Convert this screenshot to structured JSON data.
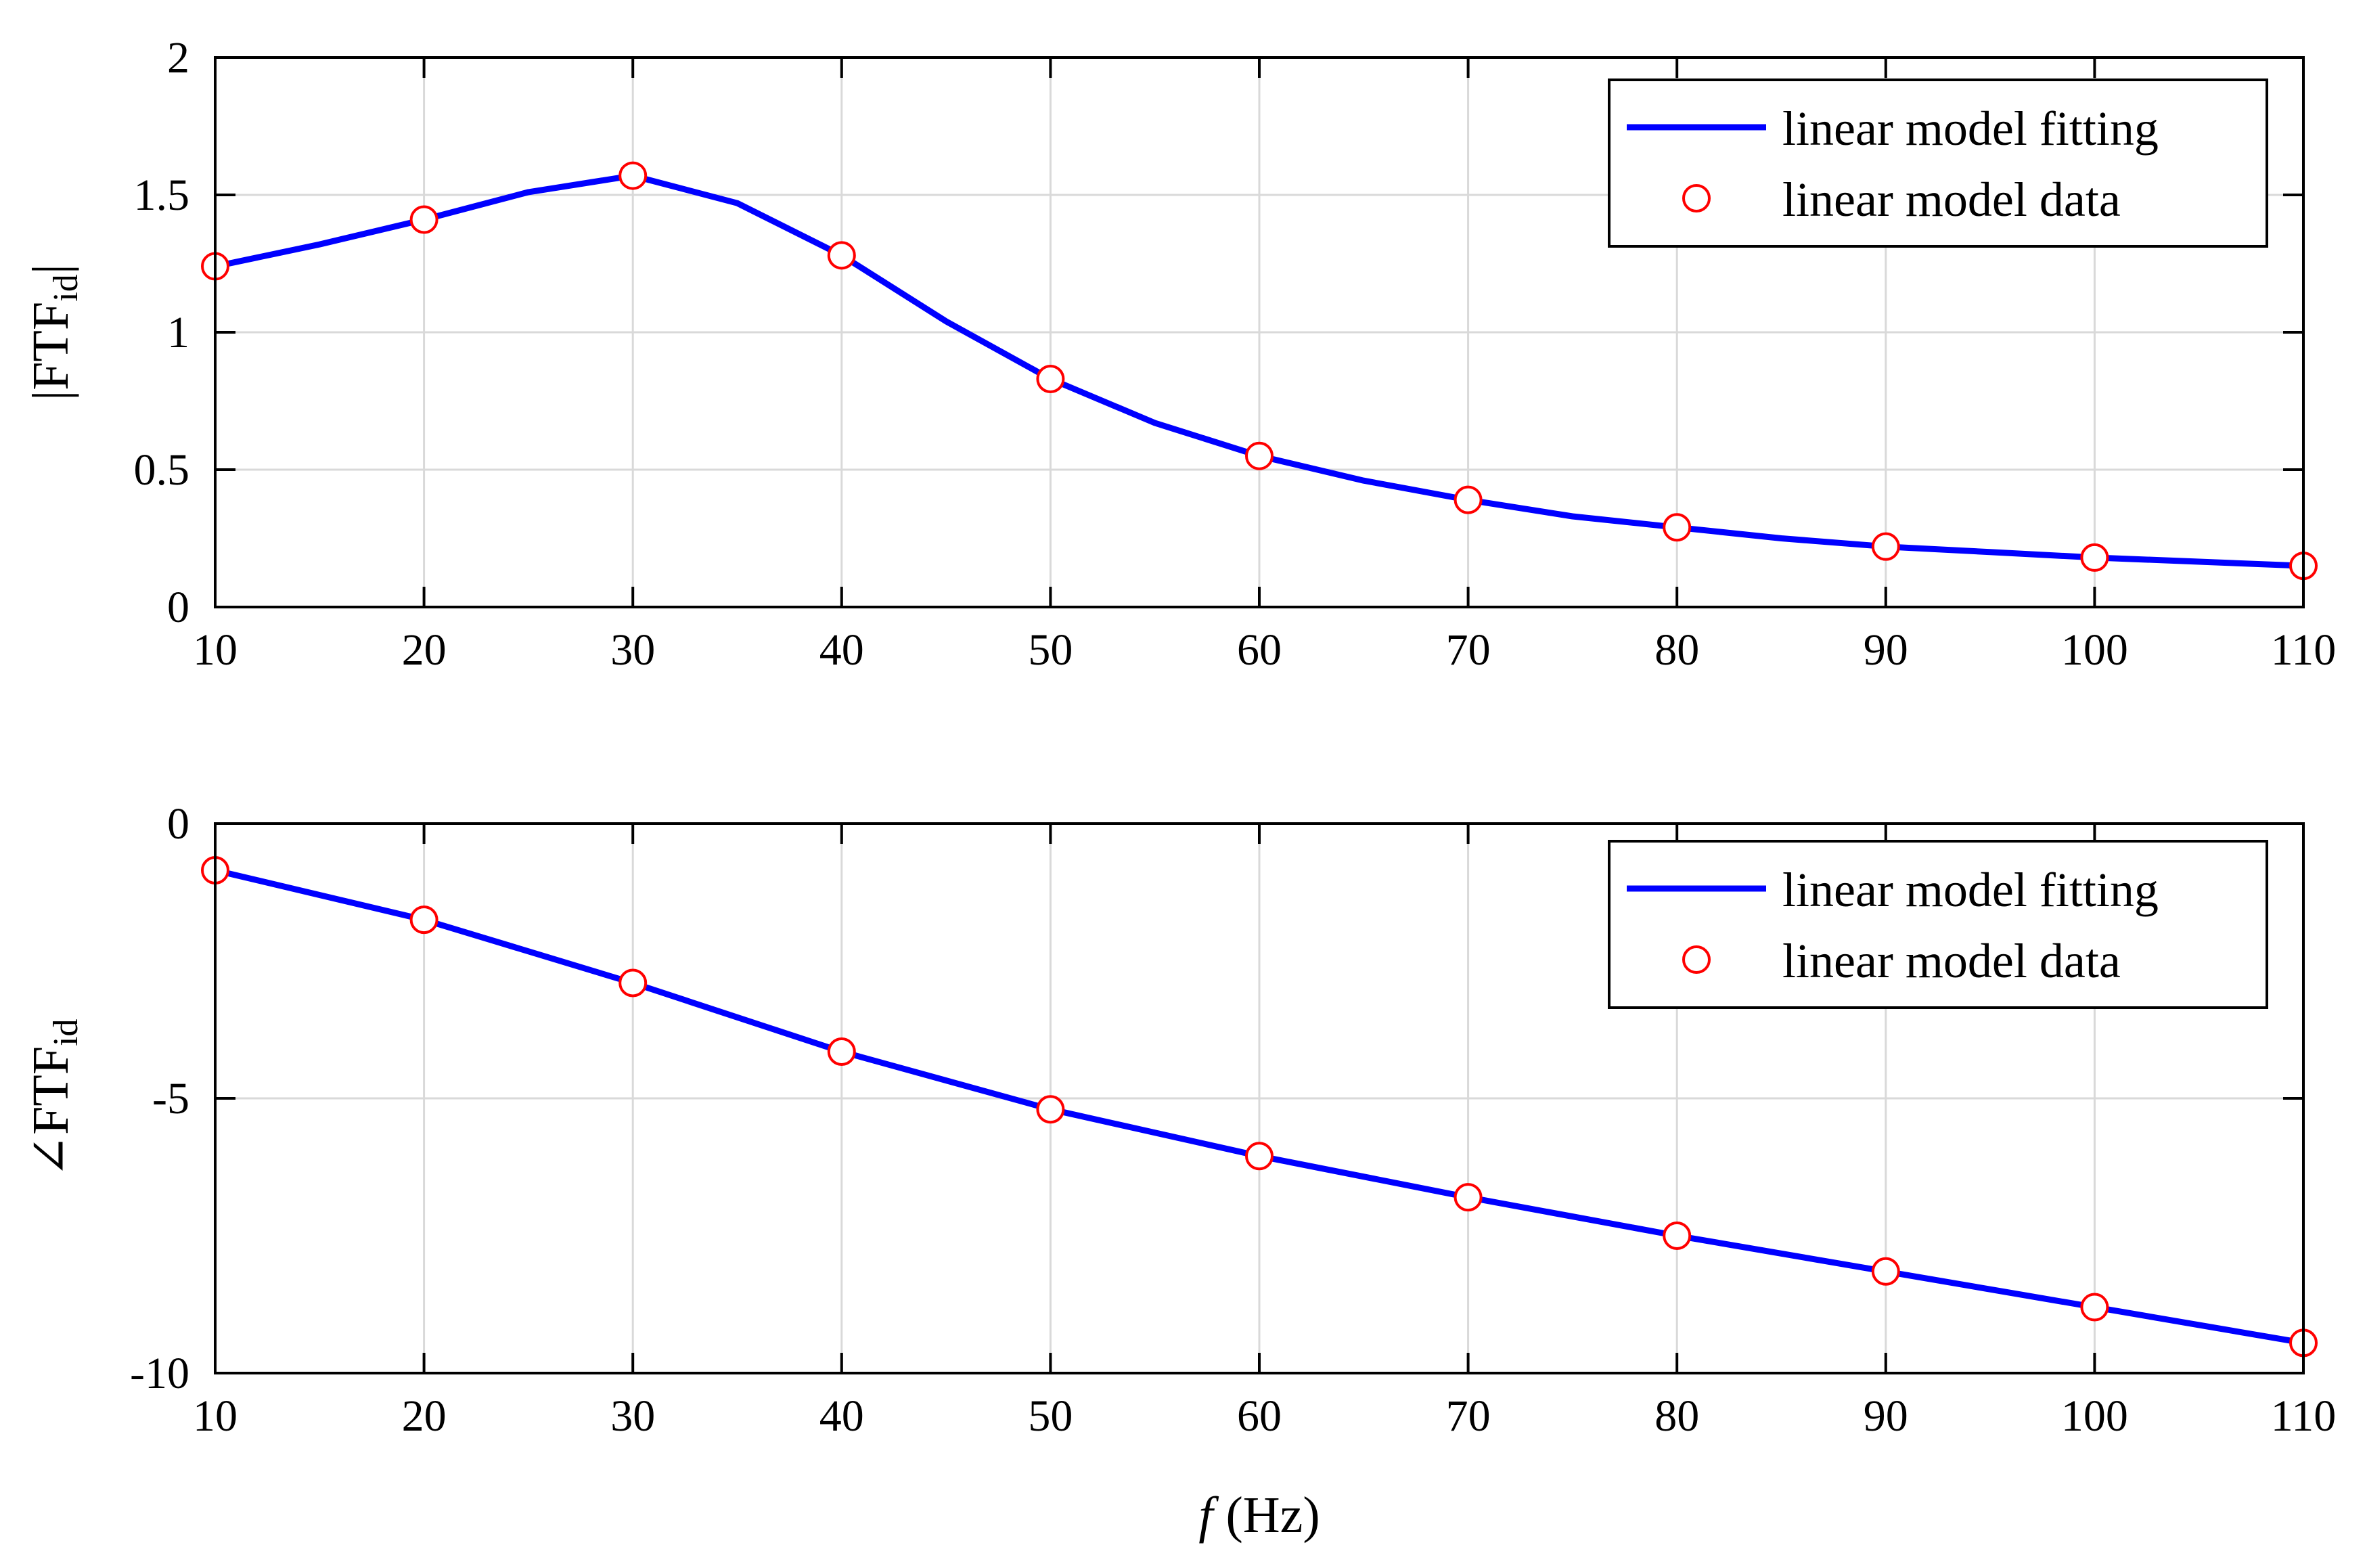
{
  "chart_data": [
    {
      "type": "line",
      "title": "",
      "ylabel_main": "|FTF",
      "ylabel_sub": "id",
      "ylabel_close": "|",
      "xlim": [
        10,
        110
      ],
      "ylim": [
        0,
        2
      ],
      "xticks": [
        10,
        20,
        30,
        40,
        50,
        60,
        70,
        80,
        90,
        100,
        110
      ],
      "yticks": [
        0,
        0.5,
        1,
        1.5,
        2
      ],
      "ytick_labels": [
        "0",
        "0.5",
        "1",
        "1.5",
        "2"
      ],
      "grid": true,
      "legend_position": "top-right",
      "fit_series": {
        "name": "linear model fitting",
        "color": "#0000ff",
        "x": [
          10,
          15,
          20,
          25,
          30,
          35,
          40,
          45,
          50,
          55,
          60,
          65,
          70,
          75,
          80,
          85,
          90,
          95,
          100,
          105,
          110
        ],
        "y": [
          1.24,
          1.32,
          1.41,
          1.51,
          1.57,
          1.47,
          1.28,
          1.04,
          0.83,
          0.67,
          0.55,
          0.46,
          0.39,
          0.33,
          0.29,
          0.25,
          0.22,
          0.2,
          0.18,
          0.165,
          0.15
        ]
      },
      "data_series": {
        "name": "linear model data",
        "color": "#ff0000",
        "x": [
          10,
          20,
          30,
          40,
          50,
          60,
          70,
          80,
          90,
          100,
          110
        ],
        "y": [
          1.24,
          1.41,
          1.57,
          1.28,
          0.83,
          0.55,
          0.39,
          0.29,
          0.22,
          0.18,
          0.15
        ]
      }
    },
    {
      "type": "line",
      "title": "",
      "ylabel_main": "∠FTF",
      "ylabel_sub": "id",
      "ylabel_close": "",
      "xlabel_italic": "f",
      "xlabel_rest": " (Hz)",
      "xlim": [
        10,
        110
      ],
      "ylim": [
        -10,
        0
      ],
      "xticks": [
        10,
        20,
        30,
        40,
        50,
        60,
        70,
        80,
        90,
        100,
        110
      ],
      "yticks": [
        -10,
        -5,
        0
      ],
      "ytick_labels": [
        "-10",
        "-5",
        "0"
      ],
      "grid": true,
      "legend_position": "top-right",
      "fit_series": {
        "name": "linear model fitting",
        "color": "#0000ff",
        "x": [
          10,
          20,
          30,
          40,
          50,
          60,
          70,
          80,
          90,
          100,
          110
        ],
        "y": [
          -0.85,
          -1.75,
          -2.9,
          -4.15,
          -5.2,
          -6.05,
          -6.8,
          -7.5,
          -8.15,
          -8.8,
          -9.45
        ]
      },
      "data_series": {
        "name": "linear model data",
        "color": "#ff0000",
        "x": [
          10,
          20,
          30,
          40,
          50,
          60,
          70,
          80,
          90,
          100,
          110
        ],
        "y": [
          -0.85,
          -1.75,
          -2.9,
          -4.15,
          -5.2,
          -6.05,
          -6.8,
          -7.5,
          -8.15,
          -8.8,
          -9.45
        ]
      }
    }
  ]
}
